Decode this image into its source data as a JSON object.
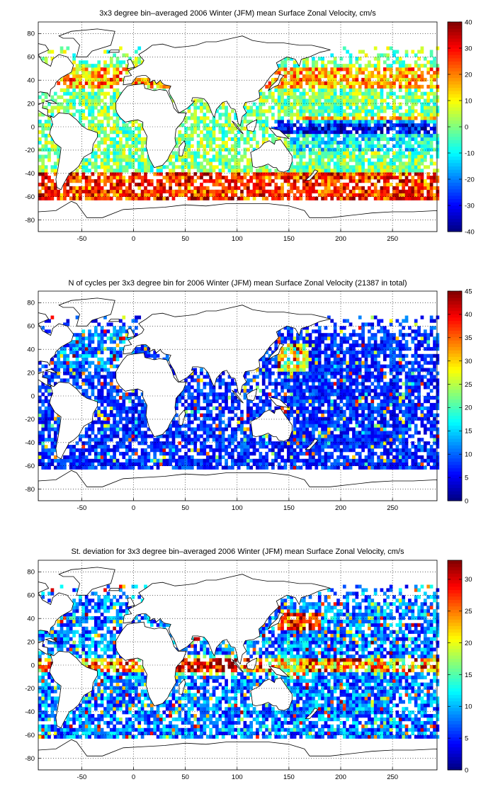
{
  "colors": {
    "land_fill": "#ffffff",
    "coastline": "#000000",
    "grid": "#000000",
    "colormap": "jet"
  },
  "chart_data": [
    {
      "type": "heatmap",
      "title": "3x3 degree bin–averaged 2006 Winter (JFM) mean Surface Zonal Velocity, cm/s",
      "xlabel": "",
      "ylabel": "",
      "xlim": [
        -92,
        293
      ],
      "ylim": [
        -90,
        90
      ],
      "xticks": [
        -50,
        0,
        50,
        100,
        150,
        200,
        250
      ],
      "yticks": [
        -80,
        -60,
        -40,
        -20,
        0,
        20,
        40,
        60,
        80
      ],
      "grid": true,
      "bin_deg": 3,
      "colorbar": {
        "min": -40,
        "max": 40,
        "ticks": [
          -40,
          -30,
          -20,
          -10,
          0,
          10,
          20,
          30,
          40
        ]
      },
      "pattern": "zonal_velocity"
    },
    {
      "type": "heatmap",
      "title": "N of cycles per 3x3 degree bin for 2006 Winter (JFM) mean Surface Zonal Velocity (21387 in total)",
      "xlabel": "",
      "ylabel": "",
      "xlim": [
        -92,
        293
      ],
      "ylim": [
        -90,
        90
      ],
      "xticks": [
        -50,
        0,
        50,
        100,
        150,
        200,
        250
      ],
      "yticks": [
        -80,
        -60,
        -40,
        -20,
        0,
        20,
        40,
        60,
        80
      ],
      "grid": true,
      "bin_deg": 3,
      "colorbar": {
        "min": 0,
        "max": 45,
        "ticks": [
          0,
          5,
          10,
          15,
          20,
          25,
          30,
          35,
          40,
          45
        ]
      },
      "pattern": "cycle_count"
    },
    {
      "type": "heatmap",
      "title": "St. deviation for 3x3 degree bin–averaged 2006 Winter (JFM) mean Surface Zonal Velocity, cm/s",
      "xlabel": "",
      "ylabel": "",
      "xlim": [
        -92,
        293
      ],
      "ylim": [
        -90,
        90
      ],
      "xticks": [
        -50,
        0,
        50,
        100,
        150,
        200,
        250
      ],
      "yticks": [
        -80,
        -60,
        -40,
        -20,
        0,
        20,
        40,
        60,
        80
      ],
      "grid": true,
      "bin_deg": 3,
      "colorbar": {
        "min": 0,
        "max": 33,
        "ticks": [
          0,
          5,
          10,
          15,
          20,
          25,
          30
        ]
      },
      "pattern": "std_dev"
    }
  ]
}
